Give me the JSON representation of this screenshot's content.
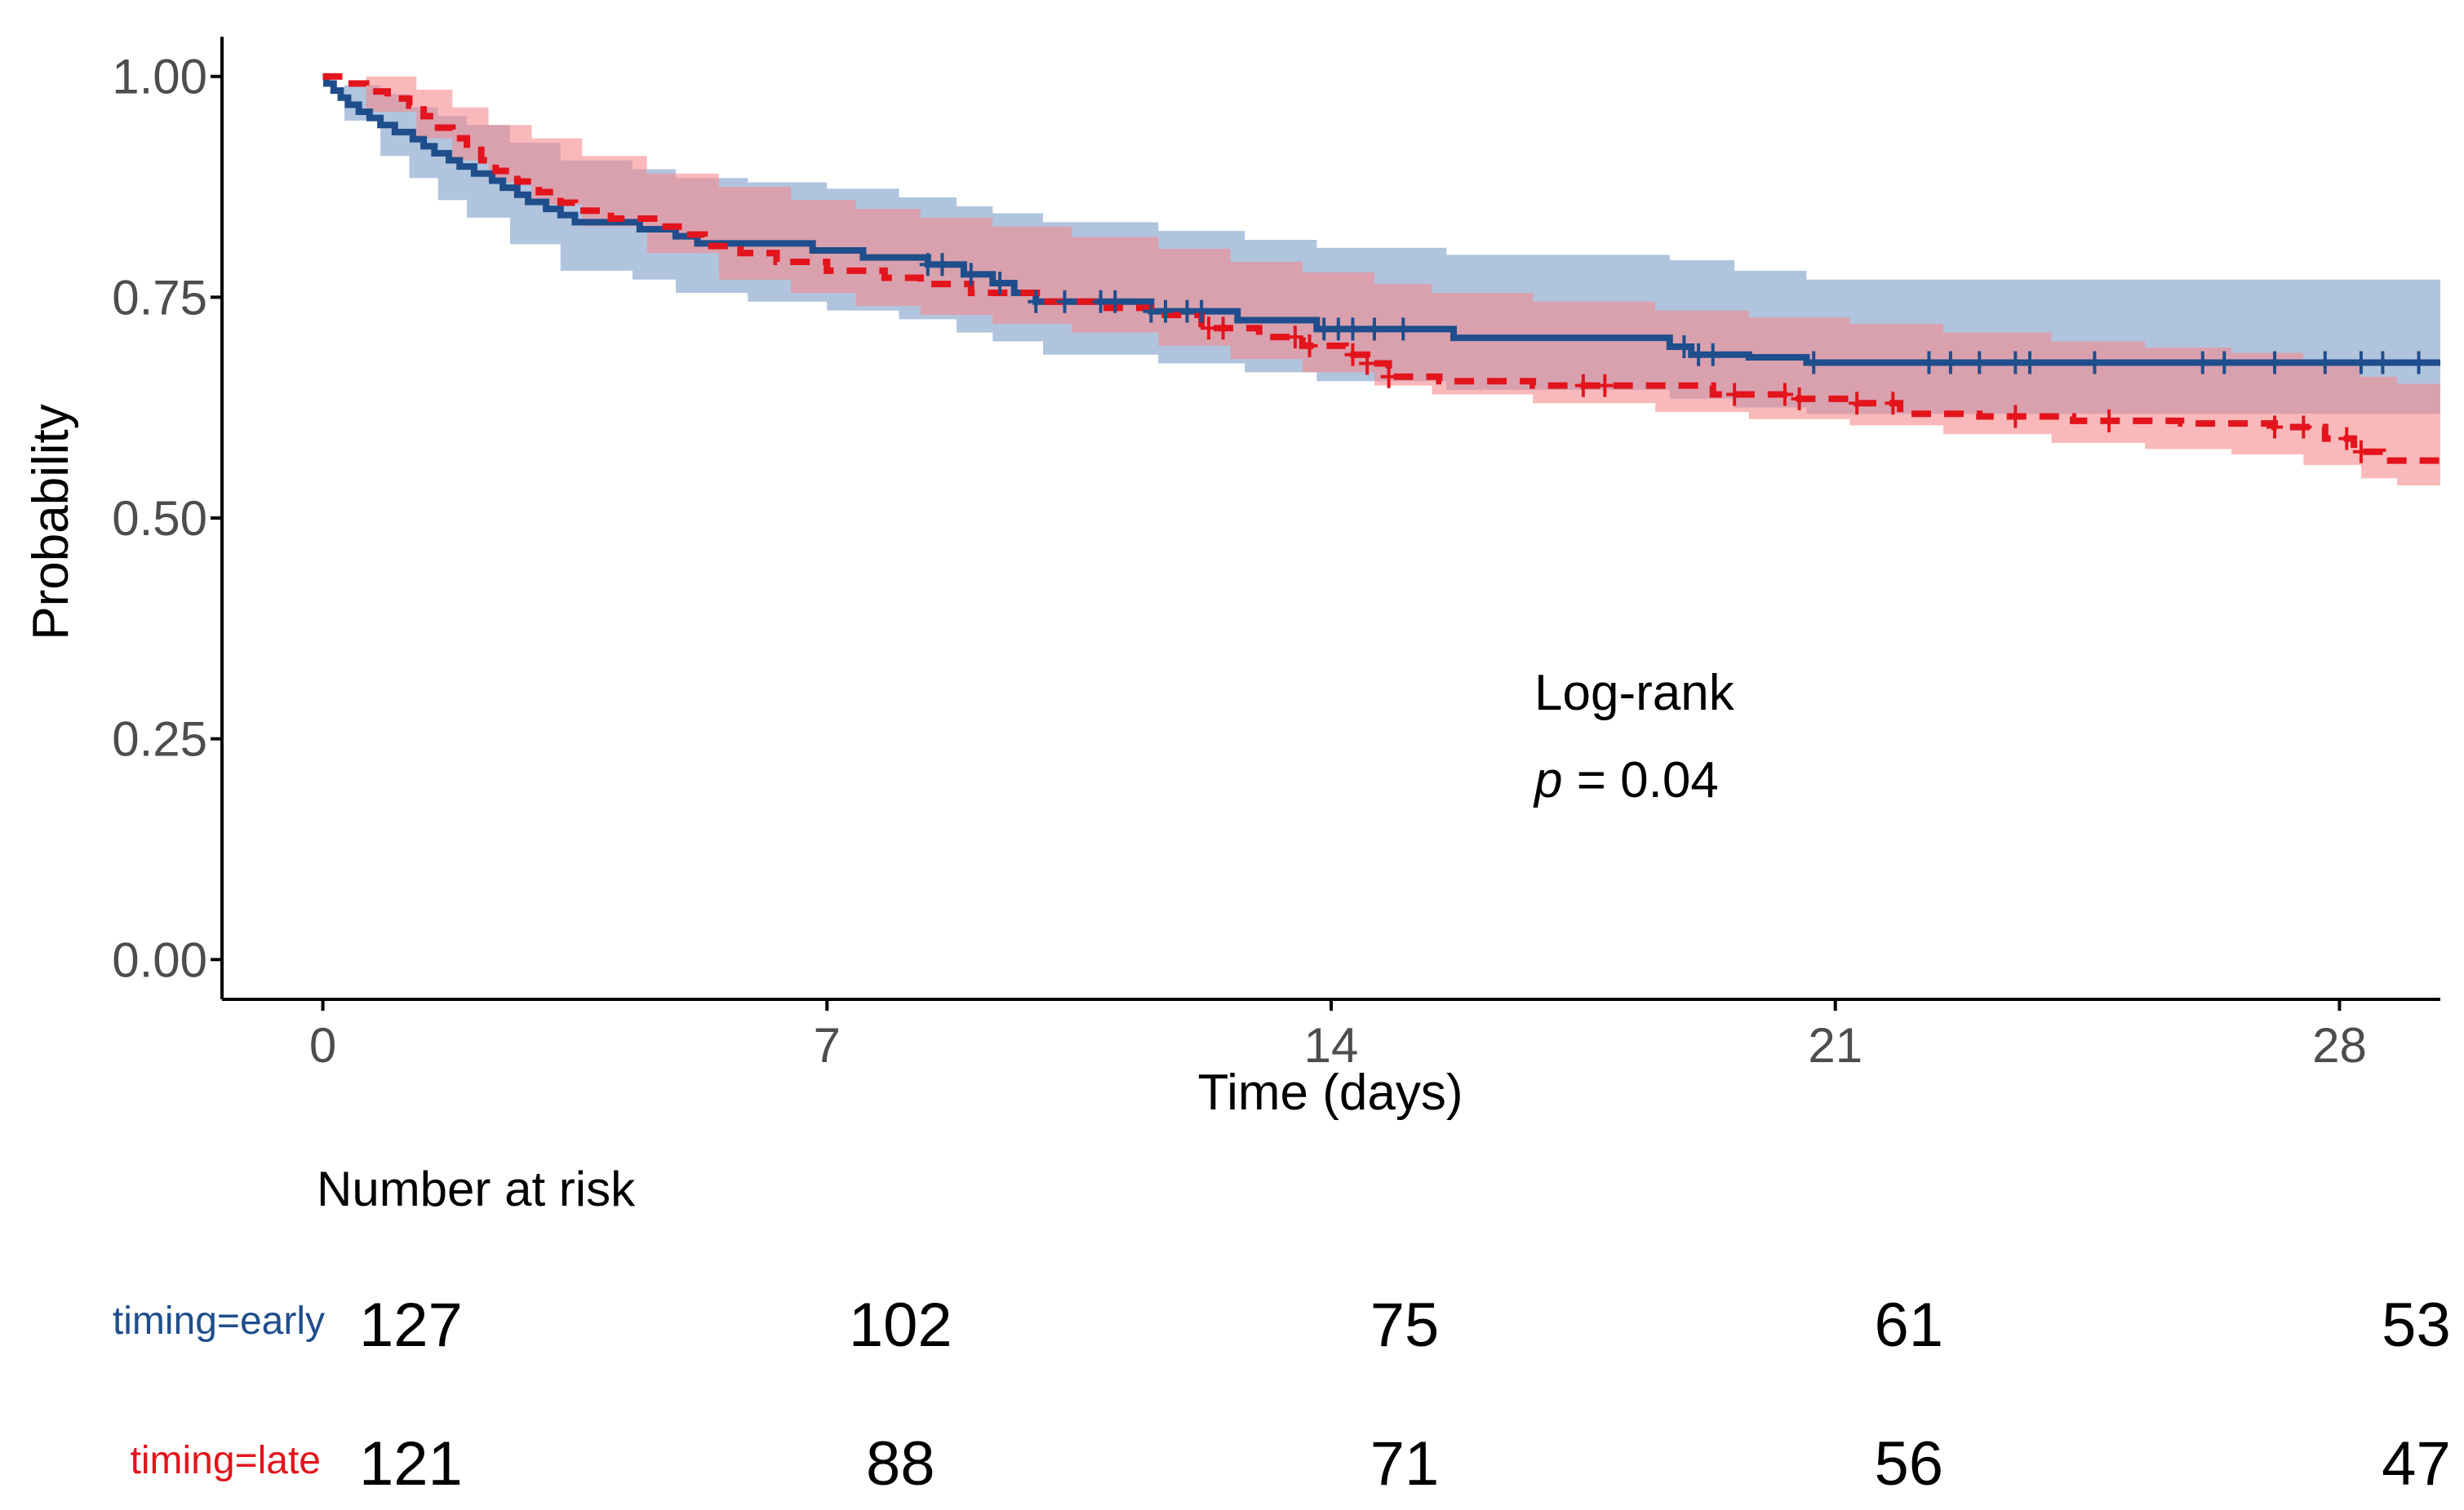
{
  "chart_data": {
    "type": "line",
    "subtype": "kaplan-meier",
    "title": "",
    "xlabel": "Time (days)",
    "ylabel": "Probability",
    "xlim": [
      -1.4,
      29.4
    ],
    "ylim": [
      -0.045,
      1.045
    ],
    "x_ticks": [
      0,
      7,
      14,
      21,
      28
    ],
    "x_tick_labels": [
      "0",
      "7",
      "14",
      "21",
      "28"
    ],
    "y_ticks": [
      0,
      0.25,
      0.5,
      0.75,
      1.0
    ],
    "y_tick_labels": [
      "0.00",
      "0.25",
      "0.50",
      "0.75",
      "1.00"
    ],
    "grid": false,
    "annotation": {
      "test_label": "Log-rank",
      "p_symbol": "p",
      "p_text": " = 0.04",
      "x": 17,
      "y": 0.32
    },
    "series": [
      {
        "name": "timing=early",
        "color": "#1f4e8c",
        "band_color": "#6f94c2",
        "line_style": "solid",
        "steps": [
          [
            0,
            1.0
          ],
          [
            0.05,
            0.992
          ],
          [
            0.15,
            0.984
          ],
          [
            0.25,
            0.976
          ],
          [
            0.35,
            0.968
          ],
          [
            0.5,
            0.96
          ],
          [
            0.65,
            0.953
          ],
          [
            0.8,
            0.945
          ],
          [
            1.0,
            0.937
          ],
          [
            1.25,
            0.929
          ],
          [
            1.4,
            0.921
          ],
          [
            1.55,
            0.913
          ],
          [
            1.75,
            0.905
          ],
          [
            1.9,
            0.898
          ],
          [
            2.1,
            0.89
          ],
          [
            2.35,
            0.882
          ],
          [
            2.5,
            0.874
          ],
          [
            2.7,
            0.866
          ],
          [
            2.85,
            0.858
          ],
          [
            3.1,
            0.85
          ],
          [
            3.3,
            0.843
          ],
          [
            3.5,
            0.835
          ],
          [
            4.4,
            0.827
          ],
          [
            4.9,
            0.819
          ],
          [
            5.2,
            0.811
          ],
          [
            5.6,
            0.811
          ],
          [
            6.8,
            0.803
          ],
          [
            7.5,
            0.795
          ],
          [
            8.4,
            0.787
          ],
          [
            8.9,
            0.776
          ],
          [
            9.3,
            0.766
          ],
          [
            9.6,
            0.755
          ],
          [
            9.9,
            0.745
          ],
          [
            11.5,
            0.734
          ],
          [
            12.7,
            0.724
          ],
          [
            13.8,
            0.714
          ],
          [
            15.0,
            0.714
          ],
          [
            15.7,
            0.704
          ],
          [
            18.7,
            0.694
          ],
          [
            19.0,
            0.685
          ],
          [
            19.8,
            0.682
          ],
          [
            20.6,
            0.676
          ],
          [
            29.4,
            0.676
          ]
        ],
        "band_steps": [
          [
            0,
            1.0,
            1.0
          ],
          [
            0.3,
            0.99,
            0.95
          ],
          [
            0.8,
            0.98,
            0.91
          ],
          [
            1.2,
            0.965,
            0.885
          ],
          [
            1.6,
            0.955,
            0.86
          ],
          [
            2.0,
            0.945,
            0.84
          ],
          [
            2.6,
            0.925,
            0.81
          ],
          [
            3.3,
            0.905,
            0.78
          ],
          [
            4.3,
            0.895,
            0.77
          ],
          [
            4.9,
            0.885,
            0.755
          ],
          [
            5.9,
            0.88,
            0.745
          ],
          [
            7.0,
            0.873,
            0.735
          ],
          [
            8.0,
            0.863,
            0.725
          ],
          [
            8.8,
            0.853,
            0.71
          ],
          [
            9.3,
            0.845,
            0.7
          ],
          [
            10.0,
            0.835,
            0.685
          ],
          [
            11.6,
            0.825,
            0.675
          ],
          [
            12.8,
            0.815,
            0.665
          ],
          [
            13.8,
            0.806,
            0.655
          ],
          [
            15.6,
            0.798,
            0.645
          ],
          [
            18.7,
            0.792,
            0.635
          ],
          [
            19.6,
            0.78,
            0.625
          ],
          [
            20.6,
            0.77,
            0.618
          ],
          [
            29.4,
            0.77,
            0.618
          ]
        ],
        "censor_x": [
          8.4,
          8.6,
          9.0,
          9.4,
          9.9,
          10.3,
          10.8,
          11.0,
          11.5,
          11.7,
          12.0,
          12.2,
          13.9,
          14.1,
          14.3,
          14.6,
          15.0,
          18.9,
          19.1,
          19.3,
          20.7,
          22.3,
          22.6,
          23.0,
          23.5,
          23.7,
          24.6,
          26.1,
          26.4,
          27.1,
          27.8,
          28.3,
          28.6,
          29.1
        ],
        "at_risk": [
          127,
          102,
          75,
          61,
          53
        ]
      },
      {
        "name": "timing=late",
        "color": "#e3141c",
        "band_color": "#f58a8e",
        "line_style": "dashed",
        "steps": [
          [
            0,
            1.0
          ],
          [
            0.3,
            0.992
          ],
          [
            0.6,
            0.983
          ],
          [
            0.9,
            0.975
          ],
          [
            1.2,
            0.967
          ],
          [
            1.4,
            0.955
          ],
          [
            1.6,
            0.942
          ],
          [
            1.8,
            0.93
          ],
          [
            2.0,
            0.917
          ],
          [
            2.2,
            0.905
          ],
          [
            2.4,
            0.893
          ],
          [
            2.7,
            0.881
          ],
          [
            3.0,
            0.869
          ],
          [
            3.3,
            0.857
          ],
          [
            3.5,
            0.848
          ],
          [
            4.0,
            0.839
          ],
          [
            4.6,
            0.83
          ],
          [
            5.0,
            0.821
          ],
          [
            5.3,
            0.808
          ],
          [
            5.8,
            0.8
          ],
          [
            6.3,
            0.79
          ],
          [
            7.0,
            0.78
          ],
          [
            7.8,
            0.772
          ],
          [
            8.3,
            0.765
          ],
          [
            9.0,
            0.755
          ],
          [
            10.0,
            0.745
          ],
          [
            10.8,
            0.738
          ],
          [
            11.5,
            0.73
          ],
          [
            12.2,
            0.715
          ],
          [
            13.0,
            0.705
          ],
          [
            13.6,
            0.695
          ],
          [
            14.2,
            0.685
          ],
          [
            14.5,
            0.675
          ],
          [
            14.8,
            0.66
          ],
          [
            15.5,
            0.655
          ],
          [
            16.8,
            0.65
          ],
          [
            19.3,
            0.64
          ],
          [
            20.5,
            0.635
          ],
          [
            21.3,
            0.63
          ],
          [
            21.9,
            0.618
          ],
          [
            23.0,
            0.615
          ],
          [
            24.3,
            0.61
          ],
          [
            25.8,
            0.607
          ],
          [
            27.1,
            0.603
          ],
          [
            27.8,
            0.59
          ],
          [
            28.2,
            0.575
          ],
          [
            28.6,
            0.565
          ],
          [
            29.4,
            0.565
          ]
        ],
        "band_steps": [
          [
            0,
            1.0,
            1.0
          ],
          [
            0.6,
            1.0,
            0.96
          ],
          [
            1.3,
            0.985,
            0.93
          ],
          [
            1.8,
            0.965,
            0.905
          ],
          [
            2.3,
            0.945,
            0.88
          ],
          [
            2.9,
            0.93,
            0.855
          ],
          [
            3.6,
            0.91,
            0.83
          ],
          [
            4.5,
            0.89,
            0.8
          ],
          [
            5.5,
            0.875,
            0.77
          ],
          [
            6.5,
            0.86,
            0.755
          ],
          [
            7.4,
            0.85,
            0.74
          ],
          [
            8.3,
            0.84,
            0.73
          ],
          [
            9.3,
            0.83,
            0.72
          ],
          [
            10.4,
            0.818,
            0.71
          ],
          [
            11.6,
            0.805,
            0.695
          ],
          [
            12.6,
            0.79,
            0.68
          ],
          [
            13.6,
            0.778,
            0.665
          ],
          [
            14.6,
            0.765,
            0.65
          ],
          [
            15.4,
            0.755,
            0.64
          ],
          [
            16.8,
            0.745,
            0.63
          ],
          [
            18.5,
            0.735,
            0.62
          ],
          [
            19.8,
            0.727,
            0.612
          ],
          [
            21.2,
            0.72,
            0.605
          ],
          [
            22.5,
            0.71,
            0.595
          ],
          [
            24.0,
            0.7,
            0.585
          ],
          [
            25.3,
            0.693,
            0.578
          ],
          [
            26.5,
            0.687,
            0.572
          ],
          [
            27.5,
            0.675,
            0.56
          ],
          [
            28.3,
            0.66,
            0.545
          ],
          [
            28.8,
            0.652,
            0.537
          ],
          [
            29.4,
            0.652,
            0.537
          ]
        ],
        "censor_x": [
          12.3,
          12.5,
          13.5,
          13.7,
          14.3,
          14.5,
          14.8,
          17.5,
          17.8,
          19.6,
          20.3,
          20.5,
          21.3,
          21.8,
          23.5,
          24.8,
          27.1,
          27.5,
          28.1,
          28.3
        ],
        "at_risk": [
          121,
          88,
          71,
          56,
          47
        ]
      }
    ],
    "risk_table": {
      "title": "Number at risk",
      "times": [
        0,
        7,
        14,
        21,
        28
      ],
      "value_labels": [
        [
          "127",
          "102",
          "75",
          "61",
          "53"
        ],
        [
          "121",
          "88",
          "71",
          "56",
          "47"
        ]
      ]
    }
  }
}
